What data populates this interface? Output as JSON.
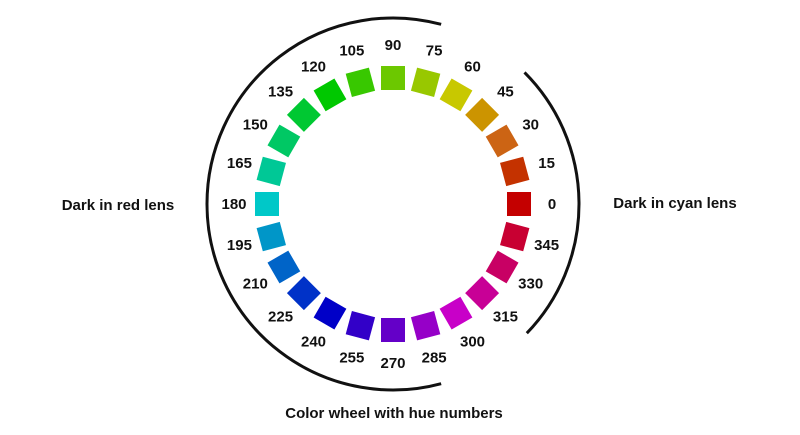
{
  "labels": {
    "left": "Dark in red lens",
    "right": "Dark in cyan lens",
    "caption": "Color wheel with hue numbers"
  },
  "wheel": {
    "swatches": [
      {
        "hue": "0",
        "color": "#c40000"
      },
      {
        "hue": "15",
        "color": "#c43200"
      },
      {
        "hue": "30",
        "color": "#cc6414"
      },
      {
        "hue": "45",
        "color": "#cc9400"
      },
      {
        "hue": "60",
        "color": "#c8c800"
      },
      {
        "hue": "75",
        "color": "#98c800"
      },
      {
        "hue": "90",
        "color": "#6cc800"
      },
      {
        "hue": "105",
        "color": "#38c800"
      },
      {
        "hue": "120",
        "color": "#00c800"
      },
      {
        "hue": "135",
        "color": "#00c832"
      },
      {
        "hue": "150",
        "color": "#00c864"
      },
      {
        "hue": "165",
        "color": "#00c896"
      },
      {
        "hue": "180",
        "color": "#00c8c8"
      },
      {
        "hue": "195",
        "color": "#0096c8"
      },
      {
        "hue": "210",
        "color": "#0064c8"
      },
      {
        "hue": "225",
        "color": "#0032c8"
      },
      {
        "hue": "240",
        "color": "#0000c8"
      },
      {
        "hue": "255",
        "color": "#3200c8"
      },
      {
        "hue": "270",
        "color": "#6400c8"
      },
      {
        "hue": "285",
        "color": "#9600c8"
      },
      {
        "hue": "300",
        "color": "#c800c8"
      },
      {
        "hue": "315",
        "color": "#c80096"
      },
      {
        "hue": "330",
        "color": "#c80064"
      },
      {
        "hue": "345",
        "color": "#c80032"
      }
    ]
  }
}
